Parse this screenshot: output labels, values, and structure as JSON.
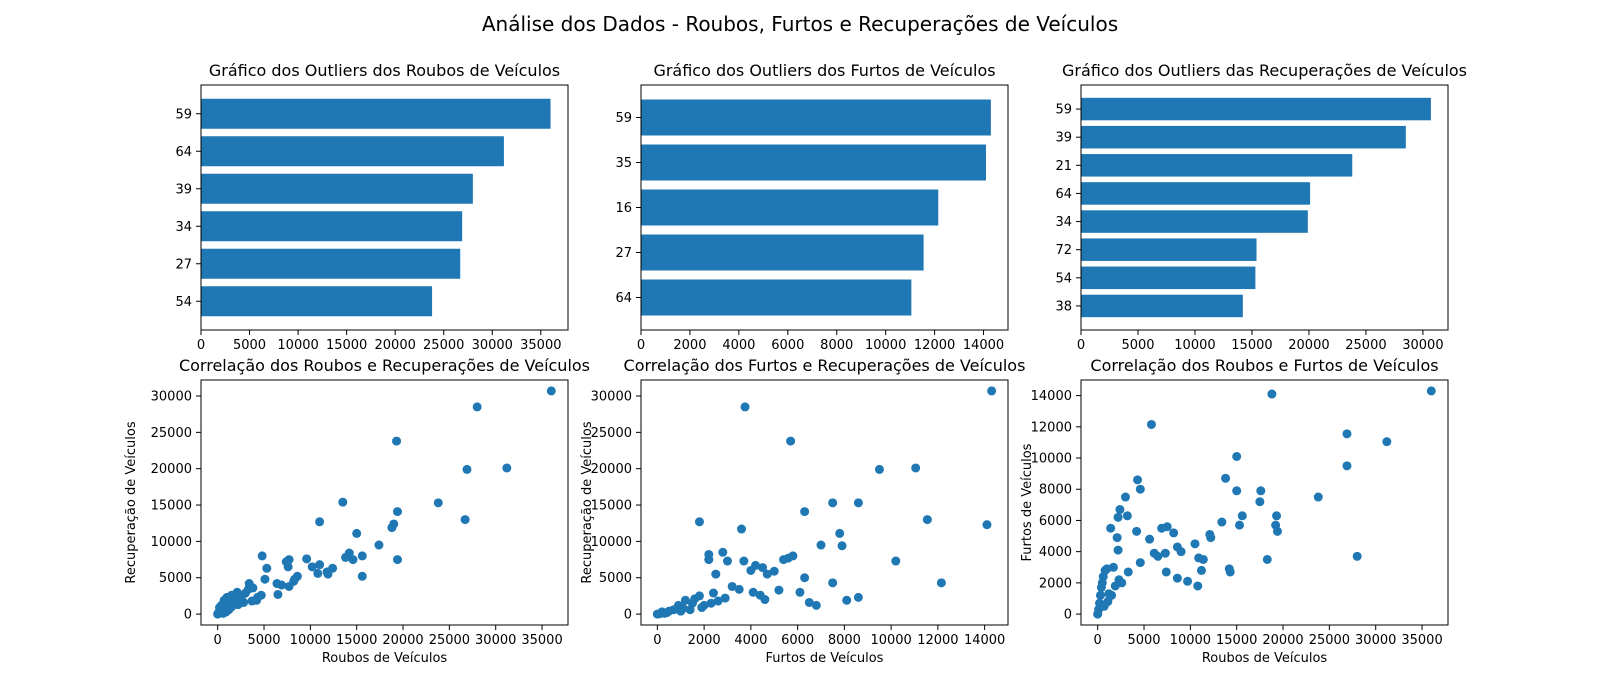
{
  "page": {
    "suptitle": "Análise dos Dados - Roubos, Furtos e Recuperações de Veículos",
    "bar_color": "#1f77b4",
    "point_color": "#1f77b4"
  },
  "chart_data": [
    {
      "type": "bar",
      "orientation": "horizontal",
      "title": "Gráfico dos Outliers dos Roubos de Veículos",
      "xlabel": "",
      "ylabel": "",
      "categories": [
        "59",
        "64",
        "39",
        "34",
        "27",
        "54"
      ],
      "values": [
        36000,
        31200,
        28000,
        26900,
        26700,
        23800
      ],
      "xlim": [
        0,
        37800
      ],
      "xticks": [
        0,
        5000,
        10000,
        15000,
        20000,
        25000,
        30000,
        35000
      ],
      "grid": false
    },
    {
      "type": "bar",
      "orientation": "horizontal",
      "title": "Gráfico dos Outliers dos Furtos de Veículos",
      "xlabel": "",
      "ylabel": "",
      "categories": [
        "59",
        "35",
        "16",
        "27",
        "64"
      ],
      "values": [
        14300,
        14100,
        12150,
        11550,
        11050
      ],
      "xlim": [
        0,
        15000
      ],
      "xticks": [
        0,
        2000,
        4000,
        6000,
        8000,
        10000,
        12000,
        14000
      ],
      "grid": false
    },
    {
      "type": "bar",
      "orientation": "horizontal",
      "title": "Gráfico dos Outliers das Recuperações de Veículos",
      "xlabel": "",
      "ylabel": "",
      "categories": [
        "59",
        "39",
        "21",
        "64",
        "34",
        "72",
        "54",
        "38"
      ],
      "values": [
        30700,
        28500,
        23800,
        20100,
        19900,
        15400,
        15300,
        14200
      ],
      "xlim": [
        0,
        32200
      ],
      "xticks": [
        0,
        5000,
        10000,
        15000,
        20000,
        25000,
        30000
      ],
      "grid": false
    },
    {
      "type": "scatter",
      "title": "Correlação dos Roubos e Recuperações de Veículos",
      "xlabel": "Roubos de Veículos",
      "ylabel": "Recuperação de Veículos",
      "xlim": [
        -1800,
        37800
      ],
      "ylim": [
        -1500,
        32200
      ],
      "xticks": [
        0,
        5000,
        10000,
        15000,
        20000,
        25000,
        30000,
        35000
      ],
      "yticks": [
        0,
        5000,
        10000,
        15000,
        20000,
        25000,
        30000
      ],
      "grid": false,
      "points": [
        [
          36000,
          30700
        ],
        [
          28000,
          28500
        ],
        [
          19300,
          23800
        ],
        [
          31200,
          20100
        ],
        [
          26900,
          19900
        ],
        [
          23800,
          15300
        ],
        [
          26700,
          13000
        ],
        [
          19400,
          14100
        ],
        [
          19400,
          7500
        ],
        [
          18800,
          11900
        ],
        [
          19000,
          12400
        ],
        [
          17400,
          9500
        ],
        [
          13500,
          15400
        ],
        [
          15000,
          11100
        ],
        [
          15600,
          8000
        ],
        [
          15600,
          5200
        ],
        [
          14200,
          8400
        ],
        [
          14600,
          7500
        ],
        [
          13800,
          7800
        ],
        [
          12400,
          6300
        ],
        [
          11900,
          5500
        ],
        [
          11000,
          12700
        ],
        [
          11000,
          6800
        ],
        [
          10200,
          6500
        ],
        [
          9600,
          7600
        ],
        [
          10800,
          5600
        ],
        [
          8600,
          5200
        ],
        [
          8200,
          4500
        ],
        [
          7600,
          6500
        ],
        [
          7700,
          7500
        ],
        [
          7400,
          7200
        ],
        [
          6900,
          4000
        ],
        [
          6400,
          4200
        ],
        [
          5300,
          6300
        ],
        [
          4800,
          8000
        ],
        [
          4700,
          2600
        ],
        [
          4300,
          2300
        ],
        [
          3800,
          3600
        ],
        [
          3400,
          4200
        ],
        [
          3000,
          2900
        ],
        [
          2500,
          2200
        ],
        [
          2100,
          3000
        ],
        [
          1800,
          2000
        ],
        [
          1500,
          2600
        ],
        [
          1300,
          1800
        ],
        [
          1000,
          2300
        ],
        [
          800,
          1400
        ],
        [
          700,
          1900
        ],
        [
          500,
          800
        ],
        [
          400,
          1200
        ],
        [
          300,
          500
        ],
        [
          200,
          900
        ],
        [
          100,
          200
        ],
        [
          50,
          100
        ],
        [
          0,
          0
        ],
        [
          8300,
          4800
        ],
        [
          7700,
          3800
        ],
        [
          6500,
          2700
        ],
        [
          3700,
          1800
        ],
        [
          2800,
          1600
        ],
        [
          2200,
          1300
        ],
        [
          1500,
          1000
        ],
        [
          1200,
          600
        ],
        [
          900,
          300
        ],
        [
          600,
          100
        ],
        [
          4200,
          1900
        ],
        [
          5100,
          4800
        ],
        [
          3300,
          3400
        ],
        [
          2600,
          2500
        ],
        [
          11800,
          5800
        ]
      ]
    },
    {
      "type": "scatter",
      "title": "Correlação dos Furtos e Recuperações de Veículos",
      "xlabel": "Furtos de Veículos",
      "ylabel": "Recuperação de Veículos",
      "xlim": [
        -700,
        15000
      ],
      "ylim": [
        -1500,
        32200
      ],
      "xticks": [
        0,
        2000,
        4000,
        6000,
        8000,
        10000,
        12000,
        14000
      ],
      "yticks": [
        0,
        5000,
        10000,
        15000,
        20000,
        25000,
        30000
      ],
      "grid": false,
      "points": [
        [
          14300,
          30700
        ],
        [
          3750,
          28500
        ],
        [
          5700,
          23800
        ],
        [
          11050,
          20100
        ],
        [
          9500,
          19900
        ],
        [
          8600,
          15300
        ],
        [
          7500,
          15300
        ],
        [
          11550,
          13000
        ],
        [
          6300,
          14100
        ],
        [
          14100,
          12300
        ],
        [
          12150,
          4300
        ],
        [
          10200,
          7300
        ],
        [
          1800,
          12700
        ],
        [
          3600,
          11700
        ],
        [
          7800,
          11100
        ],
        [
          7900,
          9400
        ],
        [
          7000,
          9500
        ],
        [
          5800,
          8000
        ],
        [
          5400,
          7500
        ],
        [
          5600,
          7700
        ],
        [
          4200,
          6700
        ],
        [
          4500,
          6400
        ],
        [
          4000,
          6000
        ],
        [
          3700,
          7300
        ],
        [
          2800,
          8500
        ],
        [
          3000,
          7300
        ],
        [
          2200,
          8200
        ],
        [
          2200,
          7500
        ],
        [
          2500,
          5500
        ],
        [
          3200,
          3800
        ],
        [
          3500,
          3400
        ],
        [
          4100,
          3000
        ],
        [
          4600,
          2000
        ],
        [
          5200,
          3300
        ],
        [
          6100,
          3000
        ],
        [
          6500,
          1600
        ],
        [
          6800,
          1200
        ],
        [
          8100,
          1900
        ],
        [
          8600,
          2300
        ],
        [
          7500,
          4300
        ],
        [
          2000,
          1200
        ],
        [
          1800,
          2500
        ],
        [
          1600,
          2100
        ],
        [
          1500,
          1500
        ],
        [
          1200,
          1900
        ],
        [
          1100,
          800
        ],
        [
          900,
          1200
        ],
        [
          700,
          600
        ],
        [
          500,
          400
        ],
        [
          400,
          200
        ],
        [
          300,
          100
        ],
        [
          200,
          300
        ],
        [
          100,
          50
        ],
        [
          0,
          0
        ],
        [
          2600,
          1800
        ],
        [
          2900,
          2200
        ],
        [
          2300,
          1500
        ],
        [
          1900,
          900
        ],
        [
          1400,
          600
        ],
        [
          1000,
          400
        ],
        [
          4700,
          5500
        ],
        [
          5000,
          5900
        ],
        [
          4400,
          2600
        ],
        [
          6300,
          5000
        ],
        [
          2400,
          2900
        ]
      ]
    },
    {
      "type": "scatter",
      "title": "Correlação dos Roubos e Furtos de Veículos",
      "xlabel": "Roubos de Veículos",
      "ylabel": "Furtos de Veículos",
      "xlim": [
        -1800,
        37800
      ],
      "ylim": [
        -700,
        15000
      ],
      "xticks": [
        0,
        5000,
        10000,
        15000,
        20000,
        25000,
        30000,
        35000
      ],
      "yticks": [
        0,
        2000,
        4000,
        6000,
        8000,
        10000,
        12000,
        14000
      ],
      "grid": false,
      "points": [
        [
          36000,
          14300
        ],
        [
          18800,
          14100
        ],
        [
          5800,
          12150
        ],
        [
          26900,
          11550
        ],
        [
          31200,
          11050
        ],
        [
          15000,
          10100
        ],
        [
          26900,
          9500
        ],
        [
          4300,
          8600
        ],
        [
          13800,
          8700
        ],
        [
          23800,
          7500
        ],
        [
          17600,
          7900
        ],
        [
          17500,
          7200
        ],
        [
          15000,
          7900
        ],
        [
          4600,
          8000
        ],
        [
          3000,
          7500
        ],
        [
          2400,
          6700
        ],
        [
          3200,
          6300
        ],
        [
          2200,
          6200
        ],
        [
          6900,
          5500
        ],
        [
          7500,
          5600
        ],
        [
          8200,
          5200
        ],
        [
          12100,
          5100
        ],
        [
          12200,
          4900
        ],
        [
          15300,
          5700
        ],
        [
          15600,
          6300
        ],
        [
          19300,
          6300
        ],
        [
          19200,
          5700
        ],
        [
          19400,
          5300
        ],
        [
          13400,
          5900
        ],
        [
          5600,
          4800
        ],
        [
          4200,
          5300
        ],
        [
          2100,
          4900
        ],
        [
          1400,
          5500
        ],
        [
          2200,
          4100
        ],
        [
          8600,
          4300
        ],
        [
          9000,
          4000
        ],
        [
          7300,
          3900
        ],
        [
          6500,
          3700
        ],
        [
          4600,
          3300
        ],
        [
          6100,
          3900
        ],
        [
          10500,
          4500
        ],
        [
          10900,
          3600
        ],
        [
          11400,
          3500
        ],
        [
          14200,
          2900
        ],
        [
          14300,
          2700
        ],
        [
          18300,
          3500
        ],
        [
          28000,
          3700
        ],
        [
          7400,
          2700
        ],
        [
          8600,
          2300
        ],
        [
          9700,
          2100
        ],
        [
          10800,
          1800
        ],
        [
          11200,
          2800
        ],
        [
          3300,
          2700
        ],
        [
          2300,
          2200
        ],
        [
          1900,
          1800
        ],
        [
          1500,
          1200
        ],
        [
          1100,
          800
        ],
        [
          800,
          2800
        ],
        [
          600,
          2400
        ],
        [
          400,
          1700
        ],
        [
          300,
          1200
        ],
        [
          200,
          700
        ],
        [
          100,
          300
        ],
        [
          0,
          0
        ],
        [
          500,
          2000
        ],
        [
          1000,
          2900
        ],
        [
          1700,
          3000
        ],
        [
          2600,
          2000
        ],
        [
          1200,
          1300
        ],
        [
          700,
          500
        ]
      ]
    }
  ]
}
